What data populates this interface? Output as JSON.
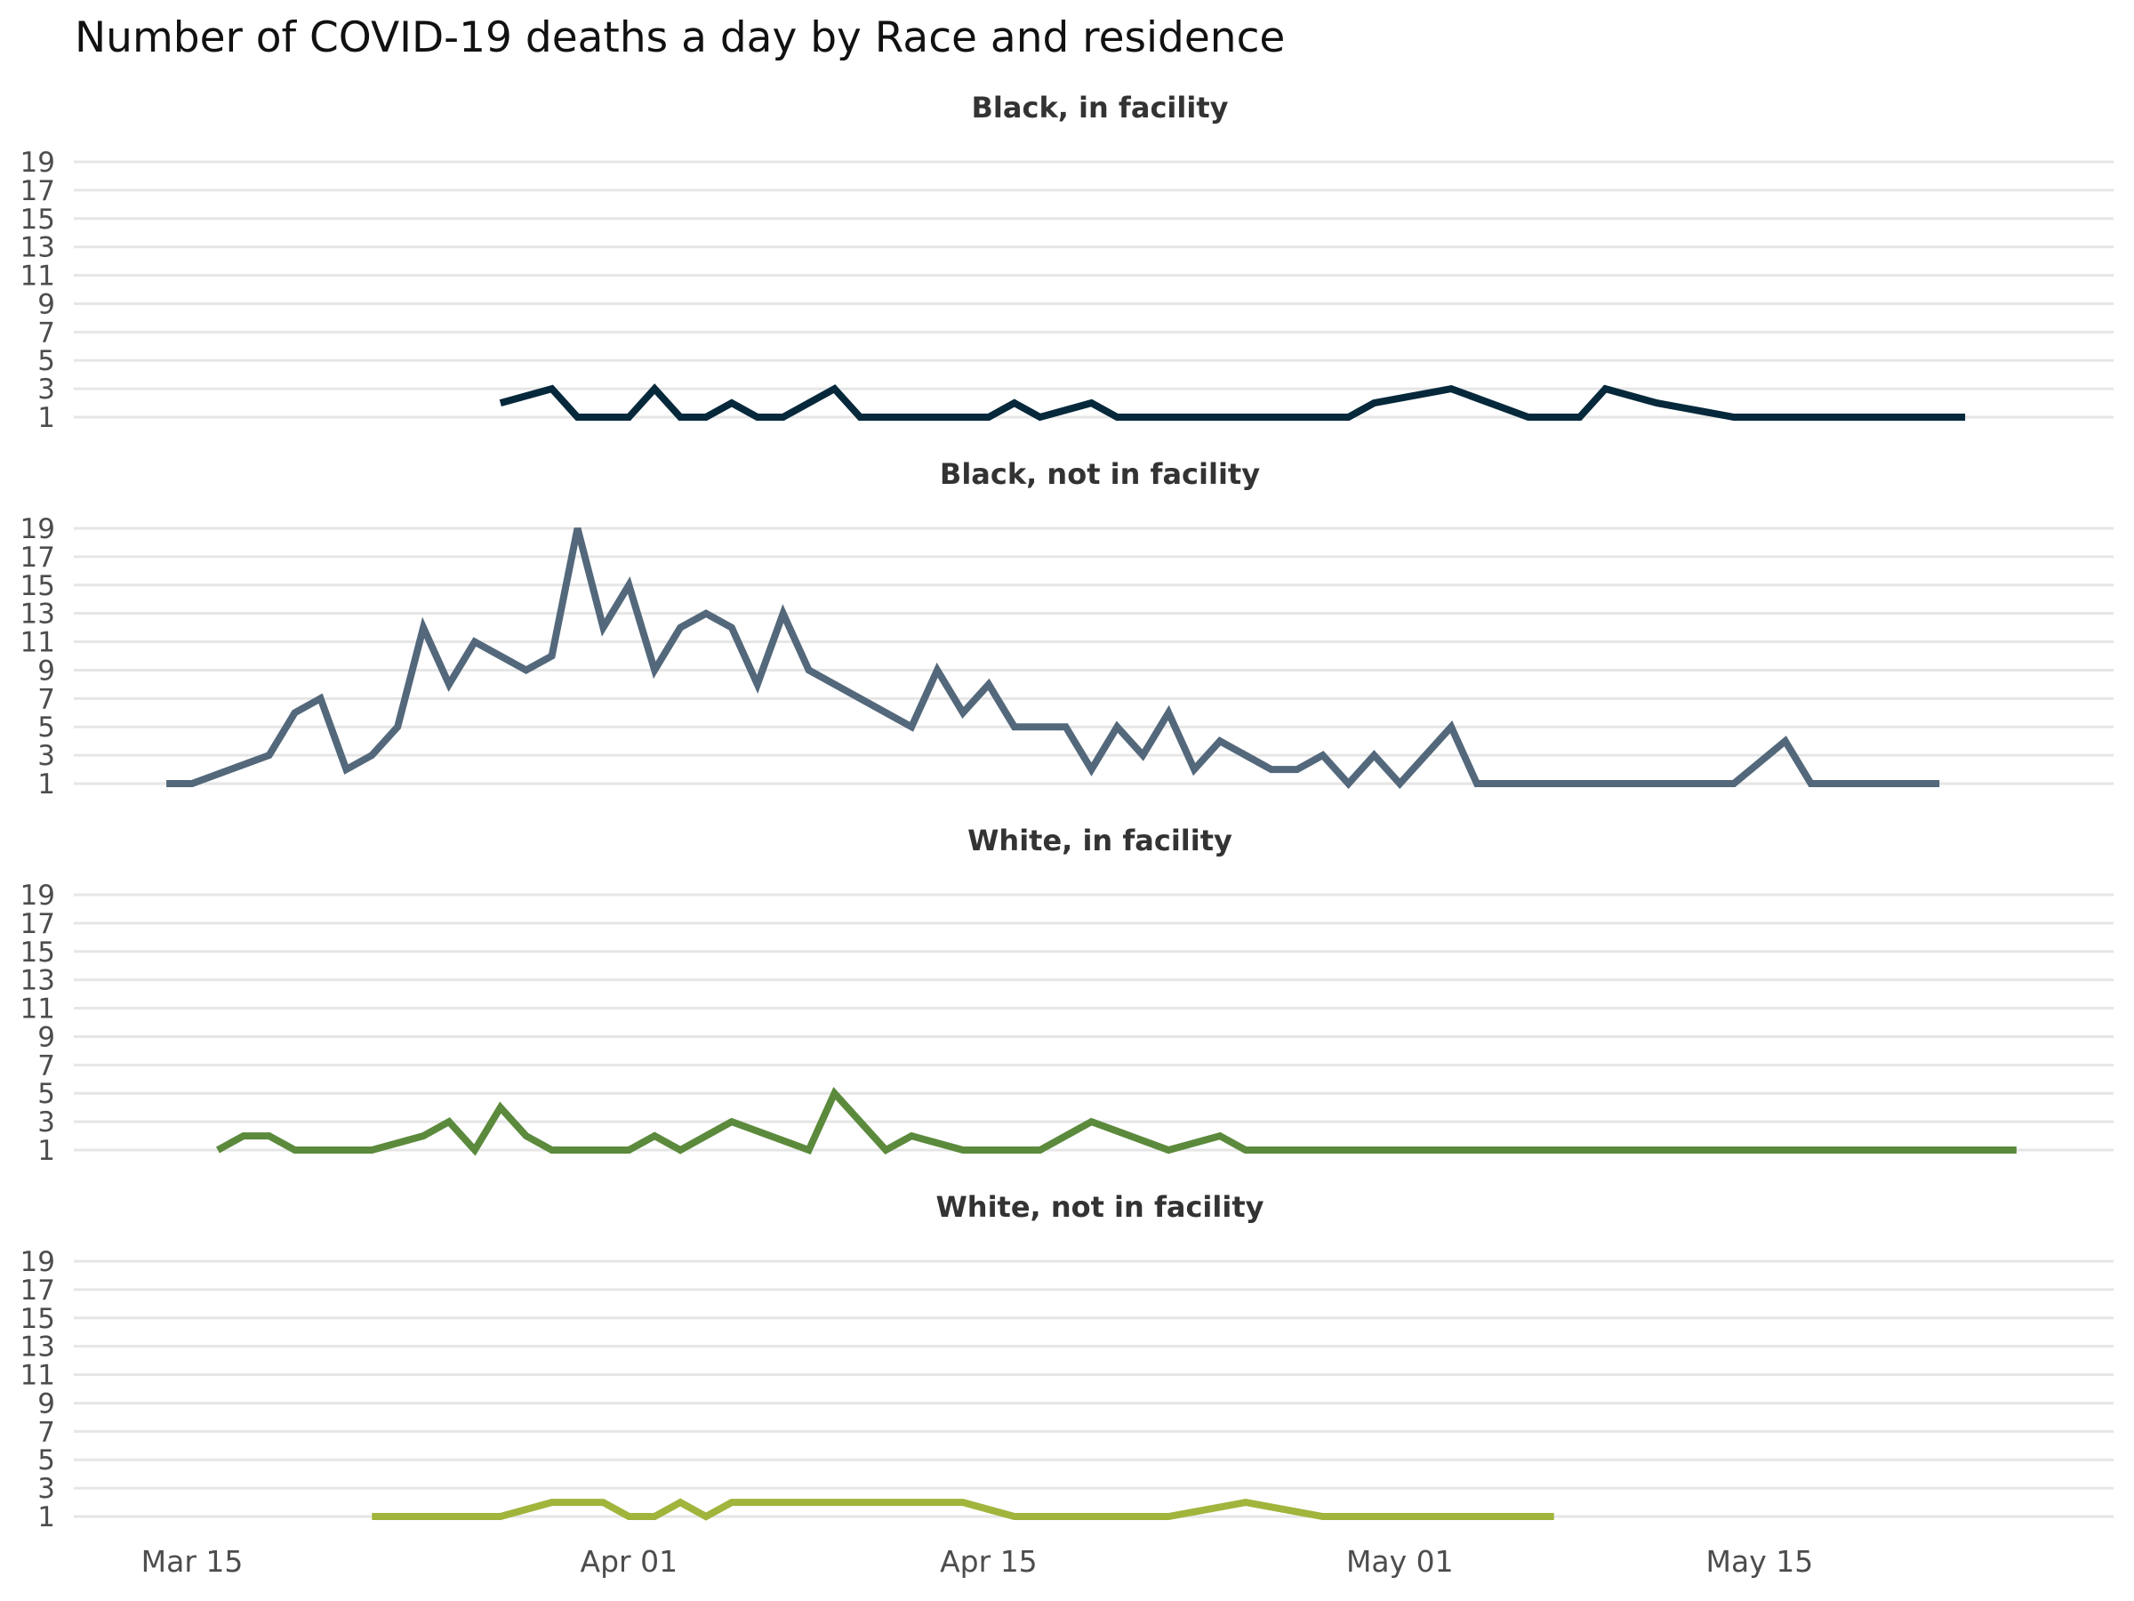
{
  "chart_data": {
    "type": "line",
    "title": "Number of COVID-19 deaths a day by Race and residence",
    "xlabel": "",
    "ylabel": "",
    "grid": true,
    "legend": "none",
    "facet_layout": "rows",
    "x_start_date": "Mar 15",
    "x_range_days": [
      -3,
      76
    ],
    "x_ticks": [
      {
        "label": "Mar 15",
        "day": 0
      },
      {
        "label": "Apr 01",
        "day": 17
      },
      {
        "label": "Apr 15",
        "day": 31
      },
      {
        "label": "May 01",
        "day": 47
      },
      {
        "label": "May 15",
        "day": 61
      }
    ],
    "y_ticks": [
      1,
      3,
      5,
      7,
      9,
      11,
      13,
      15,
      17,
      19
    ],
    "ylim": [
      0,
      20
    ],
    "series": [
      {
        "name": "Black, in facility",
        "color": "#06283b",
        "points": [
          {
            "date": "Mar 27",
            "day": 12,
            "value": 2
          },
          {
            "date": "Mar 29",
            "day": 14,
            "value": 3
          },
          {
            "date": "Mar 30",
            "day": 15,
            "value": 1
          },
          {
            "date": "Apr 01",
            "day": 17,
            "value": 1
          },
          {
            "date": "Apr 02",
            "day": 18,
            "value": 3
          },
          {
            "date": "Apr 03",
            "day": 19,
            "value": 1
          },
          {
            "date": "Apr 04",
            "day": 20,
            "value": 1
          },
          {
            "date": "Apr 05",
            "day": 21,
            "value": 2
          },
          {
            "date": "Apr 06",
            "day": 22,
            "value": 1
          },
          {
            "date": "Apr 07",
            "day": 23,
            "value": 1
          },
          {
            "date": "Apr 09",
            "day": 25,
            "value": 3
          },
          {
            "date": "Apr 10",
            "day": 26,
            "value": 1
          },
          {
            "date": "Apr 15",
            "day": 31,
            "value": 1
          },
          {
            "date": "Apr 16",
            "day": 32,
            "value": 2
          },
          {
            "date": "Apr 17",
            "day": 33,
            "value": 1
          },
          {
            "date": "Apr 19",
            "day": 35,
            "value": 2
          },
          {
            "date": "Apr 20",
            "day": 36,
            "value": 1
          },
          {
            "date": "Apr 29",
            "day": 45,
            "value": 1
          },
          {
            "date": "Apr 30",
            "day": 46,
            "value": 2
          },
          {
            "date": "May 03",
            "day": 49,
            "value": 3
          },
          {
            "date": "May 06",
            "day": 52,
            "value": 1
          },
          {
            "date": "May 08",
            "day": 54,
            "value": 1
          },
          {
            "date": "May 09",
            "day": 55,
            "value": 3
          },
          {
            "date": "May 11",
            "day": 57,
            "value": 2
          },
          {
            "date": "May 14",
            "day": 60,
            "value": 1
          },
          {
            "date": "May 23",
            "day": 69,
            "value": 1
          }
        ]
      },
      {
        "name": "Black, not in facility",
        "color": "#53687b",
        "points": [
          {
            "date": "Mar 14",
            "day": -1,
            "value": 1
          },
          {
            "date": "Mar 15",
            "day": 0,
            "value": 1
          },
          {
            "date": "Mar 18",
            "day": 3,
            "value": 3
          },
          {
            "date": "Mar 19",
            "day": 4,
            "value": 6
          },
          {
            "date": "Mar 20",
            "day": 5,
            "value": 7
          },
          {
            "date": "Mar 21",
            "day": 6,
            "value": 2
          },
          {
            "date": "Mar 22",
            "day": 7,
            "value": 3
          },
          {
            "date": "Mar 23",
            "day": 8,
            "value": 5
          },
          {
            "date": "Mar 24",
            "day": 9,
            "value": 12
          },
          {
            "date": "Mar 25",
            "day": 10,
            "value": 8
          },
          {
            "date": "Mar 26",
            "day": 11,
            "value": 11
          },
          {
            "date": "Mar 28",
            "day": 13,
            "value": 9
          },
          {
            "date": "Mar 29",
            "day": 14,
            "value": 10
          },
          {
            "date": "Mar 30",
            "day": 15,
            "value": 19
          },
          {
            "date": "Mar 31",
            "day": 16,
            "value": 12
          },
          {
            "date": "Apr 01",
            "day": 17,
            "value": 15
          },
          {
            "date": "Apr 02",
            "day": 18,
            "value": 9
          },
          {
            "date": "Apr 03",
            "day": 19,
            "value": 12
          },
          {
            "date": "Apr 04",
            "day": 20,
            "value": 13
          },
          {
            "date": "Apr 05",
            "day": 21,
            "value": 12
          },
          {
            "date": "Apr 06",
            "day": 22,
            "value": 8
          },
          {
            "date": "Apr 07",
            "day": 23,
            "value": 13
          },
          {
            "date": "Apr 08",
            "day": 24,
            "value": 9
          },
          {
            "date": "Apr 12",
            "day": 28,
            "value": 5
          },
          {
            "date": "Apr 13",
            "day": 29,
            "value": 9
          },
          {
            "date": "Apr 14",
            "day": 30,
            "value": 6
          },
          {
            "date": "Apr 15",
            "day": 31,
            "value": 8
          },
          {
            "date": "Apr 16",
            "day": 32,
            "value": 5
          },
          {
            "date": "Apr 18",
            "day": 34,
            "value": 5
          },
          {
            "date": "Apr 19",
            "day": 35,
            "value": 2
          },
          {
            "date": "Apr 20",
            "day": 36,
            "value": 5
          },
          {
            "date": "Apr 21",
            "day": 37,
            "value": 3
          },
          {
            "date": "Apr 22",
            "day": 38,
            "value": 6
          },
          {
            "date": "Apr 23",
            "day": 39,
            "value": 2
          },
          {
            "date": "Apr 24",
            "day": 40,
            "value": 4
          },
          {
            "date": "Apr 26",
            "day": 42,
            "value": 2
          },
          {
            "date": "Apr 27",
            "day": 43,
            "value": 2
          },
          {
            "date": "Apr 28",
            "day": 44,
            "value": 3
          },
          {
            "date": "Apr 29",
            "day": 45,
            "value": 1
          },
          {
            "date": "Apr 30",
            "day": 46,
            "value": 3
          },
          {
            "date": "May 01",
            "day": 47,
            "value": 1
          },
          {
            "date": "May 03",
            "day": 49,
            "value": 5
          },
          {
            "date": "May 04",
            "day": 50,
            "value": 1
          },
          {
            "date": "May 14",
            "day": 60,
            "value": 1
          },
          {
            "date": "May 16",
            "day": 62,
            "value": 4
          },
          {
            "date": "May 17",
            "day": 63,
            "value": 1
          },
          {
            "date": "May 22",
            "day": 68,
            "value": 1
          }
        ]
      },
      {
        "name": "White, in facility",
        "color": "#5b8a3c",
        "points": [
          {
            "date": "Mar 16",
            "day": 1,
            "value": 1
          },
          {
            "date": "Mar 17",
            "day": 2,
            "value": 2
          },
          {
            "date": "Mar 18",
            "day": 3,
            "value": 2
          },
          {
            "date": "Mar 19",
            "day": 4,
            "value": 1
          },
          {
            "date": "Mar 22",
            "day": 7,
            "value": 1
          },
          {
            "date": "Mar 24",
            "day": 9,
            "value": 2
          },
          {
            "date": "Mar 25",
            "day": 10,
            "value": 3
          },
          {
            "date": "Mar 26",
            "day": 11,
            "value": 1
          },
          {
            "date": "Mar 27",
            "day": 12,
            "value": 4
          },
          {
            "date": "Mar 28",
            "day": 13,
            "value": 2
          },
          {
            "date": "Mar 29",
            "day": 14,
            "value": 1
          },
          {
            "date": "Apr 01",
            "day": 17,
            "value": 1
          },
          {
            "date": "Apr 02",
            "day": 18,
            "value": 2
          },
          {
            "date": "Apr 03",
            "day": 19,
            "value": 1
          },
          {
            "date": "Apr 05",
            "day": 21,
            "value": 3
          },
          {
            "date": "Apr 08",
            "day": 24,
            "value": 1
          },
          {
            "date": "Apr 09",
            "day": 25,
            "value": 5
          },
          {
            "date": "Apr 11",
            "day": 27,
            "value": 1
          },
          {
            "date": "Apr 12",
            "day": 28,
            "value": 2
          },
          {
            "date": "Apr 14",
            "day": 30,
            "value": 1
          },
          {
            "date": "Apr 17",
            "day": 33,
            "value": 1
          },
          {
            "date": "Apr 19",
            "day": 35,
            "value": 3
          },
          {
            "date": "Apr 22",
            "day": 38,
            "value": 1
          },
          {
            "date": "Apr 24",
            "day": 40,
            "value": 2
          },
          {
            "date": "Apr 25",
            "day": 41,
            "value": 1
          },
          {
            "date": "May 25",
            "day": 71,
            "value": 1
          }
        ]
      },
      {
        "name": "White, not in facility",
        "color": "#a1b43c",
        "points": [
          {
            "date": "Mar 22",
            "day": 7,
            "value": 1
          },
          {
            "date": "Mar 27",
            "day": 12,
            "value": 1
          },
          {
            "date": "Mar 29",
            "day": 14,
            "value": 2
          },
          {
            "date": "Mar 31",
            "day": 16,
            "value": 2
          },
          {
            "date": "Apr 01",
            "day": 17,
            "value": 1
          },
          {
            "date": "Apr 02",
            "day": 18,
            "value": 1
          },
          {
            "date": "Apr 03",
            "day": 19,
            "value": 2
          },
          {
            "date": "Apr 04",
            "day": 20,
            "value": 1
          },
          {
            "date": "Apr 05",
            "day": 21,
            "value": 2
          },
          {
            "date": "Apr 14",
            "day": 30,
            "value": 2
          },
          {
            "date": "Apr 16",
            "day": 32,
            "value": 1
          },
          {
            "date": "Apr 22",
            "day": 38,
            "value": 1
          },
          {
            "date": "Apr 25",
            "day": 41,
            "value": 2
          },
          {
            "date": "Apr 28",
            "day": 44,
            "value": 1
          },
          {
            "date": "May 07",
            "day": 53,
            "value": 1
          }
        ]
      }
    ]
  }
}
